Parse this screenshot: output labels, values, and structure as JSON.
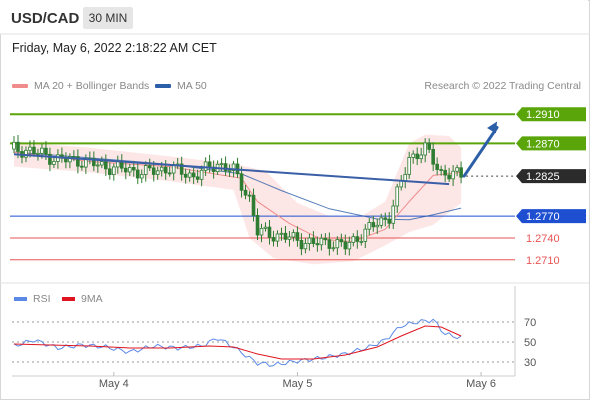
{
  "header": {
    "symbol": "USD/CAD",
    "timeframe": "30 MIN"
  },
  "timestamp": "Friday, May 6, 2022 2:18:22 AM CET",
  "legend": {
    "items": [
      {
        "label": "MA 20 + Bollinger Bands",
        "color": "#f08c8c"
      },
      {
        "label": "MA 50",
        "color": "#2d5fa8"
      }
    ],
    "credit": "Research © 2022 Trading Central"
  },
  "colors": {
    "resistance": "#5aa50a",
    "support": "#1f4fd1",
    "support_minor": "#e85555",
    "trendline": "#3a5fa7",
    "arrow": "#2d5fa8",
    "bollinger_fill": "#fde2e2",
    "ma20": "#f08c8c",
    "ma50": "#2d5fa8",
    "rsi": "#5b8ae6",
    "rsi_ma": "#e0141e",
    "candle": "#2e7d32"
  },
  "chart_data": [
    {
      "type": "candlestick",
      "x_labels": [
        "May 4",
        "May 5",
        "May 6"
      ],
      "ylim": [
        1.2685,
        1.2935
      ],
      "current_price": 1.2825,
      "levels": [
        {
          "value": 1.291,
          "label": "1.2910",
          "kind": "resistance"
        },
        {
          "value": 1.287,
          "label": "1.2870",
          "kind": "resistance"
        },
        {
          "value": 1.2825,
          "label": "1.2825",
          "kind": "current"
        },
        {
          "value": 1.277,
          "label": "1.2770",
          "kind": "support"
        },
        {
          "value": 1.274,
          "label": "1.2740",
          "kind": "support_minor"
        },
        {
          "value": 1.271,
          "label": "1.2710",
          "kind": "support_minor"
        }
      ],
      "trendline": [
        [
          1,
          1.2855
        ],
        [
          110,
          1.2814
        ]
      ],
      "price_path": [
        [
          1,
          1.2862
        ],
        [
          5,
          1.286
        ],
        [
          12,
          1.2848
        ],
        [
          18,
          1.2846
        ],
        [
          22,
          1.284
        ],
        [
          28,
          1.2835
        ],
        [
          34,
          1.283
        ],
        [
          40,
          1.2836
        ],
        [
          46,
          1.2825
        ],
        [
          52,
          1.2842
        ],
        [
          56,
          1.2832
        ],
        [
          60,
          1.2795
        ],
        [
          62,
          1.2748
        ],
        [
          66,
          1.2745
        ],
        [
          70,
          1.274
        ],
        [
          76,
          1.2732
        ],
        [
          80,
          1.2735
        ],
        [
          84,
          1.2728
        ],
        [
          88,
          1.2745
        ],
        [
          92,
          1.276
        ],
        [
          95,
          1.277
        ],
        [
          98,
          1.2815
        ],
        [
          100,
          1.285
        ],
        [
          104,
          1.2862
        ],
        [
          108,
          1.283
        ],
        [
          113,
          1.2825
        ]
      ],
      "ma20": [
        [
          1,
          1.2858
        ],
        [
          20,
          1.2845
        ],
        [
          40,
          1.2838
        ],
        [
          58,
          1.2822
        ],
        [
          62,
          1.279
        ],
        [
          70,
          1.276
        ],
        [
          78,
          1.2738
        ],
        [
          86,
          1.2735
        ],
        [
          94,
          1.2752
        ],
        [
          100,
          1.279
        ],
        [
          106,
          1.2826
        ],
        [
          113,
          1.283
        ]
      ],
      "ma50": [
        [
          1,
          1.2858
        ],
        [
          20,
          1.285
        ],
        [
          40,
          1.2841
        ],
        [
          58,
          1.2828
        ],
        [
          68,
          1.2805
        ],
        [
          80,
          1.278
        ],
        [
          92,
          1.2766
        ],
        [
          100,
          1.2765
        ],
        [
          106,
          1.2772
        ],
        [
          113,
          1.2781
        ]
      ],
      "bollinger_upper": [
        [
          1,
          1.2872
        ],
        [
          20,
          1.2864
        ],
        [
          40,
          1.2852
        ],
        [
          56,
          1.2842
        ],
        [
          64,
          1.2832
        ],
        [
          72,
          1.2788
        ],
        [
          80,
          1.277
        ],
        [
          88,
          1.277
        ],
        [
          94,
          1.279
        ],
        [
          100,
          1.287
        ],
        [
          104,
          1.2882
        ],
        [
          110,
          1.288
        ],
        [
          113,
          1.2864
        ]
      ],
      "bollinger_lower": [
        [
          1,
          1.2838
        ],
        [
          20,
          1.283
        ],
        [
          40,
          1.2818
        ],
        [
          56,
          1.2806
        ],
        [
          60,
          1.274
        ],
        [
          66,
          1.2712
        ],
        [
          76,
          1.2704
        ],
        [
          86,
          1.2708
        ],
        [
          94,
          1.273
        ],
        [
          100,
          1.2748
        ],
        [
          106,
          1.2758
        ],
        [
          113,
          1.2788
        ]
      ],
      "projection": [
        [
          113,
          1.2825
        ],
        [
          120,
          1.29
        ]
      ]
    },
    {
      "type": "line",
      "title": "RSI",
      "series": [
        {
          "name": "RSI",
          "color": "#5b8ae6"
        },
        {
          "name": "9MA",
          "color": "#e0141e"
        }
      ],
      "yticks": [
        70,
        50,
        30
      ],
      "ylim": [
        20,
        80
      ],
      "rsi": [
        [
          1,
          46
        ],
        [
          6,
          52
        ],
        [
          12,
          44
        ],
        [
          18,
          47
        ],
        [
          24,
          45
        ],
        [
          30,
          40
        ],
        [
          36,
          46
        ],
        [
          42,
          44
        ],
        [
          48,
          46
        ],
        [
          52,
          54
        ],
        [
          56,
          45
        ],
        [
          60,
          34
        ],
        [
          62,
          29
        ],
        [
          66,
          27
        ],
        [
          72,
          31
        ],
        [
          78,
          34
        ],
        [
          84,
          38
        ],
        [
          90,
          45
        ],
        [
          94,
          52
        ],
        [
          98,
          66
        ],
        [
          102,
          70
        ],
        [
          106,
          72
        ],
        [
          109,
          58
        ],
        [
          113,
          54
        ]
      ],
      "rsi_ma": [
        [
          1,
          48
        ],
        [
          10,
          47
        ],
        [
          20,
          46
        ],
        [
          30,
          44
        ],
        [
          40,
          44
        ],
        [
          50,
          46
        ],
        [
          56,
          45
        ],
        [
          62,
          38
        ],
        [
          68,
          33
        ],
        [
          76,
          33
        ],
        [
          84,
          37
        ],
        [
          92,
          45
        ],
        [
          98,
          56
        ],
        [
          104,
          66
        ],
        [
          108,
          65
        ],
        [
          113,
          56
        ]
      ]
    }
  ]
}
